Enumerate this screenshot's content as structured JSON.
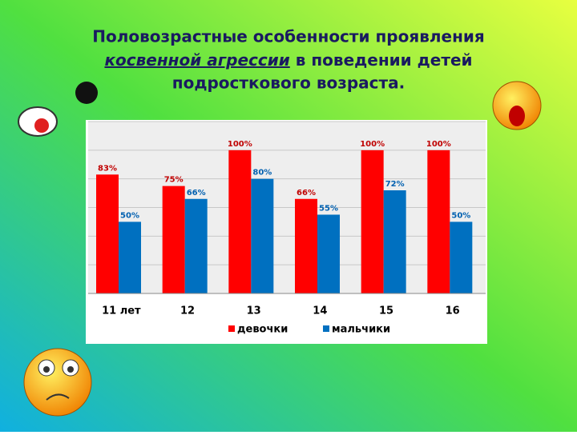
{
  "title_line1": "Половозрастные особенности проявления",
  "title_emphasis": "косвенной агрессии",
  "title_line2_rest": "в поведении детей",
  "title_line3": "подросткового возраста.",
  "chart_data": {
    "type": "bar",
    "categories": [
      "11 лет",
      "12",
      "13",
      "14",
      "15",
      "16"
    ],
    "series": [
      {
        "name": "девочки",
        "color": "#ff0000",
        "values": [
          83,
          75,
          100,
          66,
          100,
          100
        ],
        "value_labels": [
          "83%",
          "75%",
          "100%",
          "66%",
          "100%",
          "100%"
        ]
      },
      {
        "name": "мальчики",
        "color": "#0070c0",
        "values": [
          50,
          66,
          80,
          55,
          72,
          50
        ],
        "value_labels": [
          "50%",
          "66%",
          "80%",
          "55%",
          "72%",
          "50%"
        ]
      }
    ],
    "ylim": [
      0,
      120
    ],
    "yticks": [
      0,
      20,
      40,
      60,
      80,
      100,
      120
    ],
    "grid": true,
    "legend": "bottom"
  }
}
